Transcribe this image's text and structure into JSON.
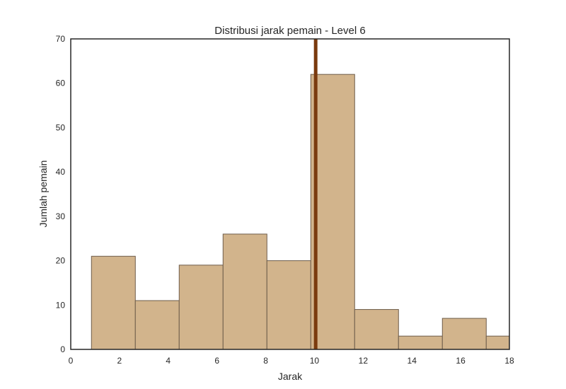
{
  "chart_data": {
    "type": "bar",
    "title": "Distribusi jarak pemain - Level 6",
    "xlabel": "Jarak",
    "ylabel": "Jumlah pemain",
    "xlim": [
      0,
      18
    ],
    "ylim": [
      0,
      70
    ],
    "xticks": [
      "0",
      "2",
      "4",
      "6",
      "8",
      "10",
      "12",
      "14",
      "16",
      "18"
    ],
    "yticks": [
      "0",
      "10",
      "20",
      "30",
      "40",
      "50",
      "60",
      "70"
    ],
    "bins": [
      {
        "x0": 0.85,
        "x1": 2.65,
        "count": 21
      },
      {
        "x0": 2.65,
        "x1": 4.45,
        "count": 11
      },
      {
        "x0": 4.45,
        "x1": 6.25,
        "count": 19
      },
      {
        "x0": 6.25,
        "x1": 8.05,
        "count": 26
      },
      {
        "x0": 8.05,
        "x1": 9.85,
        "count": 20
      },
      {
        "x0": 9.85,
        "x1": 11.65,
        "count": 62
      },
      {
        "x0": 11.65,
        "x1": 13.45,
        "count": 9
      },
      {
        "x0": 13.45,
        "x1": 15.25,
        "count": 3
      },
      {
        "x0": 15.25,
        "x1": 17.05,
        "count": 7
      },
      {
        "x0": 17.05,
        "x1": 18.85,
        "count": 3
      }
    ],
    "reference_line": {
      "x": 10.05
    },
    "grid": false,
    "colors": {
      "bar_fill": "#d2b48c",
      "bar_edge": "#6e5d4b",
      "reference_line": "#7a3a0e",
      "frame": "#262626"
    }
  }
}
